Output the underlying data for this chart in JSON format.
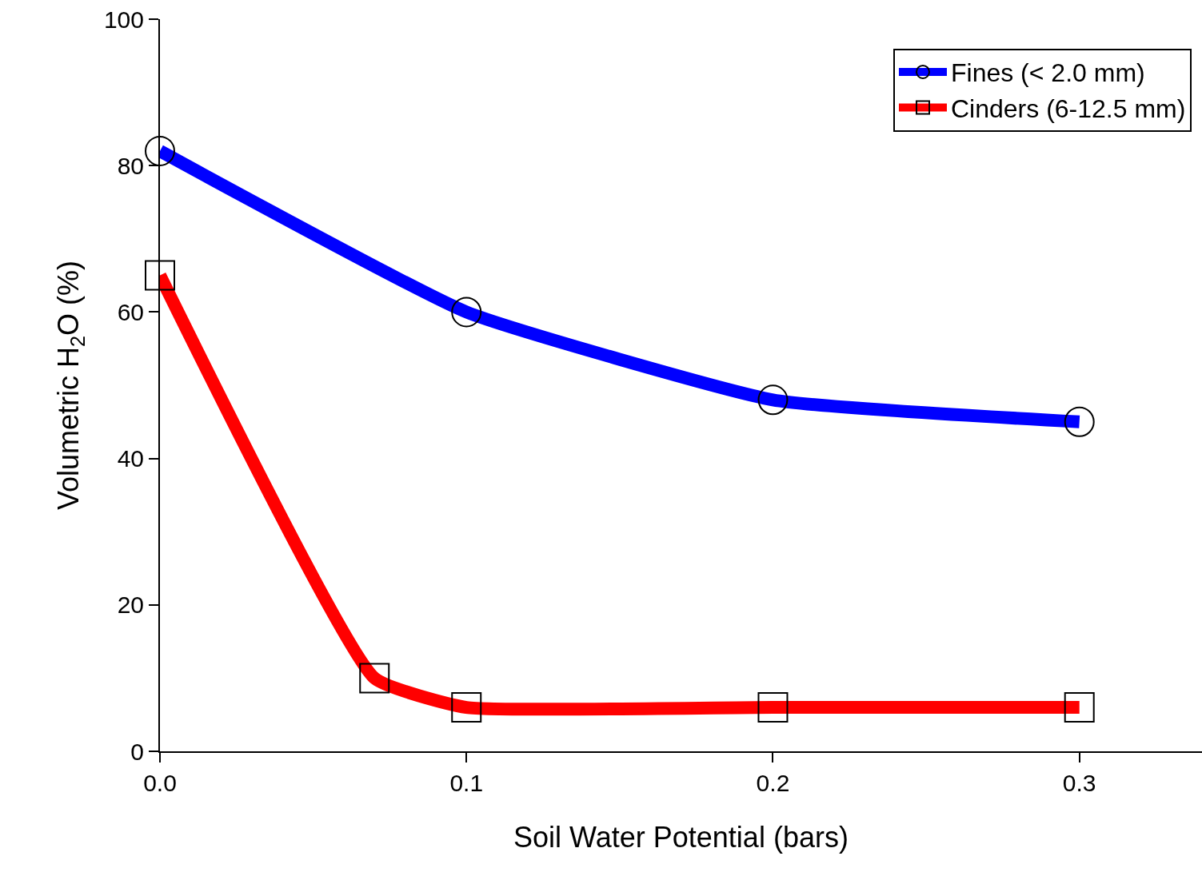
{
  "chart_data": {
    "type": "line",
    "xlabel": "Soil Water Potential (bars)",
    "ylabel": "Volumetric H$_{2}$O (%)",
    "xlim": [
      0,
      0.34
    ],
    "xticks": [
      {
        "value": 0,
        "label": "0.0"
      },
      0.1,
      0.2,
      0.3
    ],
    "ylim": [
      0,
      100
    ],
    "yticks": [
      0,
      20,
      40,
      60,
      80,
      100
    ],
    "legend": "top right",
    "series": [
      {
        "name": "Fines (< 2.0 mm)",
        "color": "#0000ff",
        "marker": "circle",
        "x": [
          0,
          0.1,
          0.2,
          0.3
        ],
        "values": [
          82,
          60,
          48,
          45
        ]
      },
      {
        "name": "Cinders (6-12.5 mm)",
        "color": "#ff0000",
        "marker": "square",
        "x": [
          0,
          0.07,
          0.1,
          0.2,
          0.3
        ],
        "values": [
          65,
          10,
          6,
          6,
          6
        ]
      }
    ]
  }
}
